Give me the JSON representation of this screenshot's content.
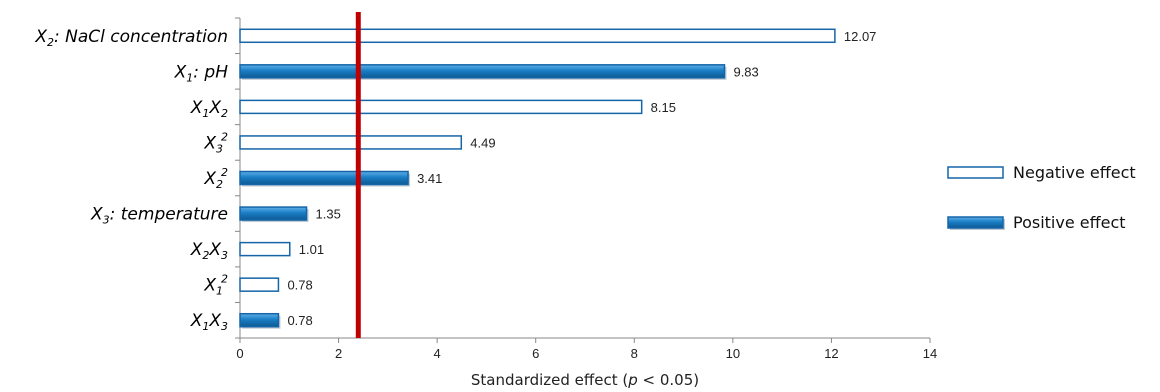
{
  "chart_data": {
    "type": "bar",
    "orientation": "horizontal",
    "categories": [
      {
        "base": "X",
        "sub": "2",
        "sup": "",
        "tail": ": NaCl concentration"
      },
      {
        "base": "X",
        "sub": "1",
        "sup": "",
        "tail": ": pH"
      },
      {
        "base": "X",
        "sub": "1",
        "sup": "",
        "tail": "",
        "base2": "X",
        "sub2": "2"
      },
      {
        "base": "X",
        "sub": "3",
        "sup": "2",
        "tail": ""
      },
      {
        "base": "X",
        "sub": "2",
        "sup": "2",
        "tail": ""
      },
      {
        "base": "X",
        "sub": "3",
        "sup": "",
        "tail": ": temperature"
      },
      {
        "base": "X",
        "sub": "2",
        "sup": "",
        "tail": "",
        "base2": "X",
        "sub2": "3"
      },
      {
        "base": "X",
        "sub": "1",
        "sup": "2",
        "tail": ""
      },
      {
        "base": "X",
        "sub": "1",
        "sup": "",
        "tail": "",
        "base2": "X",
        "sub2": "3"
      }
    ],
    "values": [
      12.07,
      9.83,
      8.15,
      4.49,
      3.41,
      1.35,
      1.01,
      0.78,
      0.78
    ],
    "value_labels": [
      "12.07",
      "9.83",
      "8.15",
      "4.49",
      "3.41",
      "1.35",
      "1.01",
      "0.78",
      "0.78"
    ],
    "effects": [
      "negative",
      "positive",
      "negative",
      "negative",
      "positive",
      "positive",
      "negative",
      "negative",
      "positive"
    ],
    "xlim": [
      0,
      14
    ],
    "xticks": [
      0,
      2,
      4,
      6,
      8,
      10,
      12,
      14
    ],
    "xlabel_prefix": "Standardized effect (",
    "xlabel_italic": "p",
    "xlabel_suffix": " < 0.05)",
    "reference_line_value": 2.4,
    "legend": {
      "placement": "right",
      "items": [
        {
          "key": "negative",
          "label": "Negative effect"
        },
        {
          "key": "positive",
          "label": "Positive effect"
        }
      ]
    },
    "colors": {
      "positive_fill": "#1a7dc4",
      "positive_dark": "#0d5a93",
      "negative_fill": "#ffffff",
      "bar_stroke": "#1565a8",
      "reference_line": "#c00000",
      "axis": "#888888"
    }
  }
}
